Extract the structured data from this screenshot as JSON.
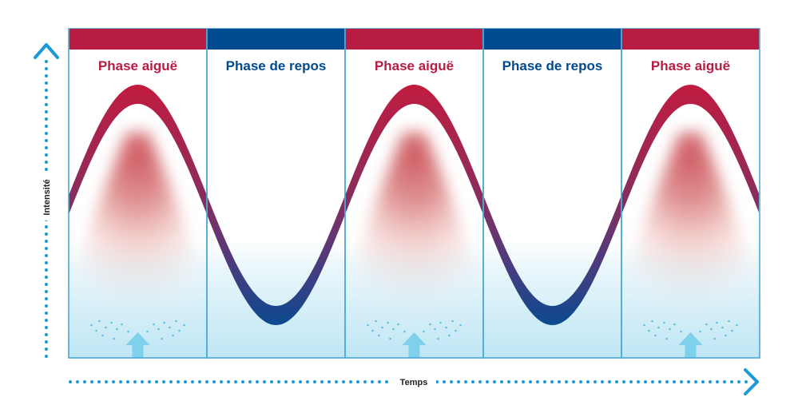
{
  "colors": {
    "acute": "#b81c43",
    "rest": "#004a8f",
    "border": "#4aa8d8",
    "axis": "#1a9ad6",
    "arrow": "#7fd0ea",
    "cool_fill": "#bfe6f4",
    "glow": "#cc4a55"
  },
  "axes": {
    "y_label": "Intensité",
    "x_label": "Temps"
  },
  "phases": [
    {
      "type": "acute",
      "label": "Phase aiguë"
    },
    {
      "type": "rest",
      "label": "Phase de repos"
    },
    {
      "type": "acute",
      "label": "Phase aiguë"
    },
    {
      "type": "rest",
      "label": "Phase de repos"
    },
    {
      "type": "acute",
      "label": "Phase aiguë"
    }
  ],
  "icons": {
    "y_axis": "arrow-up-dotted-icon",
    "x_axis": "arrow-right-dotted-icon",
    "rising": "arrow-up-icon"
  }
}
